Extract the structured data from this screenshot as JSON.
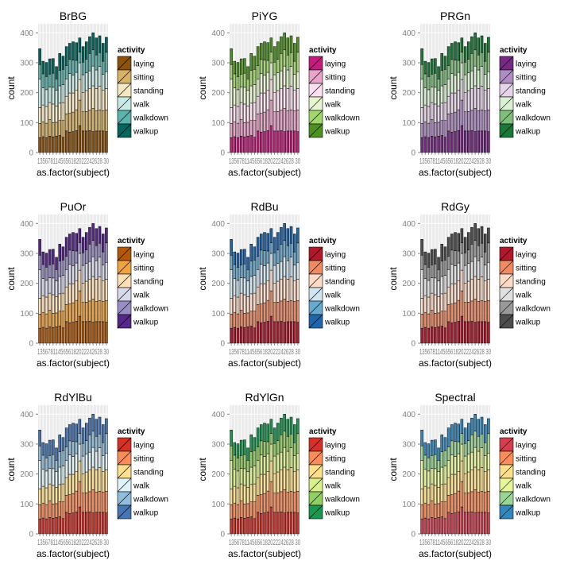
{
  "figure": {
    "activities": [
      "laying",
      "sitting",
      "standing",
      "walk",
      "walkdown",
      "walkup"
    ],
    "subjects": [
      1,
      3,
      5,
      6,
      7,
      8,
      11,
      14,
      15,
      16,
      17,
      19,
      21,
      22,
      23,
      25,
      26,
      27,
      28,
      29,
      30
    ],
    "counts": {
      "laying": [
        50,
        53,
        50,
        55,
        52,
        55,
        57,
        51,
        72,
        68,
        70,
        73,
        90,
        72,
        72,
        73,
        70,
        72,
        72,
        72,
        70
      ],
      "sitting": [
        47,
        50,
        48,
        55,
        48,
        46,
        50,
        56,
        57,
        63,
        65,
        70,
        85,
        64,
        65,
        68,
        78,
        68,
        70,
        68,
        72
      ],
      "standing": [
        53,
        56,
        56,
        57,
        62,
        54,
        58,
        60,
        59,
        68,
        64,
        66,
        69,
        65,
        70,
        72,
        75,
        74,
        80,
        69,
        72
      ],
      "walk": [
        95,
        57,
        56,
        52,
        56,
        53,
        58,
        60,
        58,
        65,
        60,
        59,
        56,
        59,
        60,
        60,
        66,
        62,
        66,
        52,
        56
      ],
      "walkdown": [
        49,
        47,
        44,
        43,
        47,
        38,
        52,
        51,
        45,
        47,
        50,
        40,
        36,
        42,
        45,
        58,
        54,
        50,
        46,
        44,
        65
      ],
      "walkup": [
        53,
        42,
        47,
        51,
        49,
        41,
        56,
        44,
        63,
        54,
        61,
        59,
        47,
        52,
        58,
        56,
        57,
        57,
        56,
        60,
        50
      ]
    },
    "ylim": [
      0,
      430
    ],
    "yticks": [
      0,
      100,
      200,
      300,
      400
    ],
    "xlabel": "as.factor(subject)",
    "ylabel": "count",
    "xtick_text": "1356781145656182022242628 30",
    "legend_title": "activity"
  },
  "chart_data": [
    {
      "type": "bar",
      "stacked": true,
      "title": "BrBG",
      "colors": [
        "#8c510a",
        "#d8b365",
        "#f6e8c3",
        "#c7eae5",
        "#5ab4ac",
        "#01665e"
      ]
    },
    {
      "type": "bar",
      "stacked": true,
      "title": "PiYG",
      "colors": [
        "#c51b7d",
        "#e9a3c9",
        "#fde0ef",
        "#e6f5d0",
        "#a1d76a",
        "#4d9221"
      ]
    },
    {
      "type": "bar",
      "stacked": true,
      "title": "PRGn",
      "colors": [
        "#762a83",
        "#af8dc3",
        "#e7d4e8",
        "#d9f0d3",
        "#7fbf7b",
        "#1b7837"
      ]
    },
    {
      "type": "bar",
      "stacked": true,
      "title": "PuOr",
      "colors": [
        "#b35806",
        "#f1a340",
        "#fee0b6",
        "#d8daeb",
        "#998ec3",
        "#542788"
      ]
    },
    {
      "type": "bar",
      "stacked": true,
      "title": "RdBu",
      "colors": [
        "#b2182b",
        "#ef8a62",
        "#fddbc7",
        "#d1e5f0",
        "#67a9cf",
        "#2166ac"
      ]
    },
    {
      "type": "bar",
      "stacked": true,
      "title": "RdGy",
      "colors": [
        "#b2182b",
        "#ef8a62",
        "#fddbc7",
        "#e0e0e0",
        "#999999",
        "#4d4d4d"
      ]
    },
    {
      "type": "bar",
      "stacked": true,
      "title": "RdYlBu",
      "colors": [
        "#d73027",
        "#fc8d59",
        "#fee090",
        "#e0f3f8",
        "#91bfdb",
        "#4575b4"
      ]
    },
    {
      "type": "bar",
      "stacked": true,
      "title": "RdYlGn",
      "colors": [
        "#d73027",
        "#fc8d59",
        "#fee08b",
        "#d9ef8b",
        "#91cf60",
        "#1a9850"
      ]
    },
    {
      "type": "bar",
      "stacked": true,
      "title": "Spectral",
      "colors": [
        "#d53e4f",
        "#fc8d59",
        "#fee08b",
        "#e6f598",
        "#99d594",
        "#3288bd"
      ]
    }
  ]
}
